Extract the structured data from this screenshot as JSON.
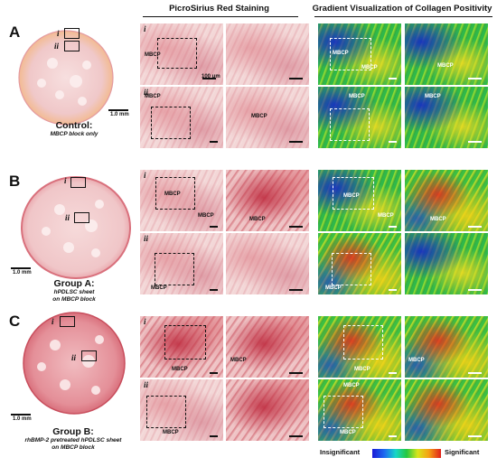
{
  "headers": {
    "psr": "PicroSirius Red Staining",
    "gradient": "Gradient Visualization of Collagen Positivity"
  },
  "rows": [
    {
      "letter": "A",
      "caption_main": "Control:",
      "caption_sub": [
        "MBCP block only"
      ],
      "scale_label": "1.0 mm",
      "roman": [
        "i",
        "ii"
      ],
      "psr_scale_label": "100 μm"
    },
    {
      "letter": "B",
      "caption_main": "Group A:",
      "caption_sub": [
        "hPDLSC sheet",
        "on MBCP block"
      ],
      "scale_label": "1.0 mm",
      "roman": [
        "i",
        "ii"
      ]
    },
    {
      "letter": "C",
      "caption_main": "Group B:",
      "caption_sub": [
        "rhBMP-2 pretreated hPDLSC sheet",
        "on MBCP block"
      ],
      "scale_label": "1.0 mm",
      "roman": [
        "i",
        "ii"
      ]
    }
  ],
  "mbcp_label": "MBCP",
  "legend": {
    "low": "Insignificant",
    "high": "Significant"
  },
  "colors": {
    "tissue_pink": "#f2d4d4",
    "psr_red": "#c8323f",
    "gradient_blue": "#1a1ad6",
    "gradient_green": "#25c841",
    "gradient_yellow": "#d8e51c",
    "gradient_red": "#e0201b"
  }
}
